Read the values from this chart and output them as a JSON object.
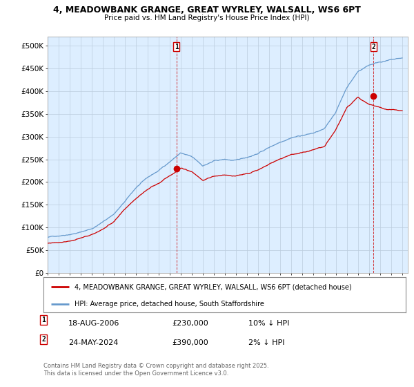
{
  "title1": "4, MEADOWBANK GRANGE, GREAT WYRLEY, WALSALL, WS6 6PT",
  "title2": "Price paid vs. HM Land Registry's House Price Index (HPI)",
  "ylim": [
    0,
    520000
  ],
  "yticks": [
    0,
    50000,
    100000,
    150000,
    200000,
    250000,
    300000,
    350000,
    400000,
    450000,
    500000
  ],
  "ytick_labels": [
    "£0",
    "£50K",
    "£100K",
    "£150K",
    "£200K",
    "£250K",
    "£300K",
    "£350K",
    "£400K",
    "£450K",
    "£500K"
  ],
  "xlim_start": 1995.0,
  "xlim_end": 2027.5,
  "legend_line1": "4, MEADOWBANK GRANGE, GREAT WYRLEY, WALSALL, WS6 6PT (detached house)",
  "legend_line2": "HPI: Average price, detached house, South Staffordshire",
  "line1_color": "#cc0000",
  "line2_color": "#6699cc",
  "chart_bg_color": "#ddeeff",
  "vline_color": "#cc0000",
  "event1_x": 2006.63,
  "event1_price": 230000,
  "event2_x": 2024.4,
  "event2_price": 390000,
  "footer": "Contains HM Land Registry data © Crown copyright and database right 2025.\nThis data is licensed under the Open Government Licence v3.0.",
  "background_color": "#ffffff",
  "grid_color": "#bbccdd"
}
